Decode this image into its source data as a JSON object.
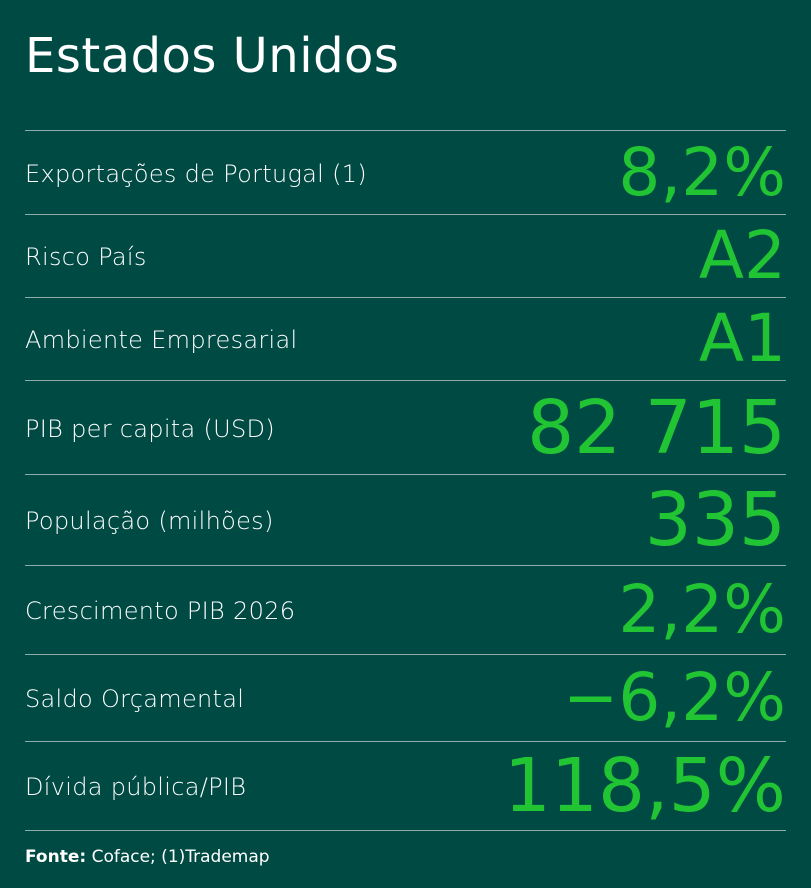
{
  "title": "Estados Unidos",
  "rows": [
    {
      "label": "Exportações de Portugal  (1)",
      "value": "8,2%"
    },
    {
      "label": "Risco País",
      "value": "A2"
    },
    {
      "label": "Ambiente Empresarial",
      "value": "A1"
    },
    {
      "label": "PIB per capita (USD)",
      "value": "82 715"
    },
    {
      "label": "População (milhões)",
      "value": "335"
    },
    {
      "label": "Crescimento PIB 2026",
      "value": "2,2%"
    },
    {
      "label": "Saldo Orçamental",
      "value": "−6,2%"
    },
    {
      "label": "Dívida pública/PIB",
      "value": "118,5%"
    }
  ],
  "source": {
    "label": "Fonte:",
    "text": " Coface; (1)Trademap"
  },
  "colors": {
    "background": "#004a44",
    "accent": "#21c534",
    "text": "#ffffff"
  }
}
